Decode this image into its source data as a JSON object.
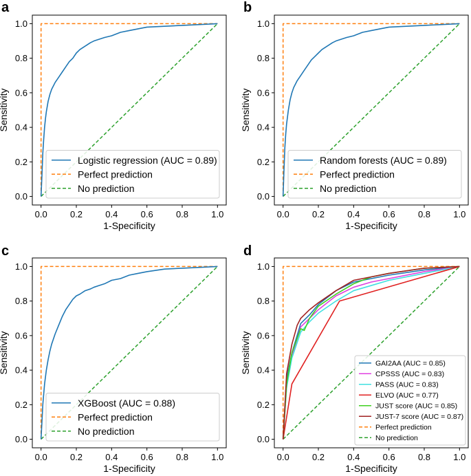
{
  "chart_data": [
    {
      "panel": "a",
      "type": "line",
      "xlabel": "1-Specificity",
      "ylabel": "Sensitivity",
      "xlim": [
        0,
        1
      ],
      "ylim": [
        0,
        1
      ],
      "xticks": [
        "0.0",
        "0.2",
        "0.4",
        "0.6",
        "0.8",
        "1.0"
      ],
      "yticks": [
        "0.0",
        "0.2",
        "0.4",
        "0.6",
        "0.8",
        "1.0"
      ],
      "legend_position": "lower-right",
      "legend_size": "large",
      "series": [
        {
          "name": "Logistic regression (AUC = 0.89)",
          "color": "#1f77b4",
          "dash": "solid",
          "x": [
            0,
            0.005,
            0.01,
            0.015,
            0.02,
            0.025,
            0.03,
            0.04,
            0.05,
            0.06,
            0.07,
            0.08,
            0.1,
            0.12,
            0.14,
            0.16,
            0.18,
            0.2,
            0.22,
            0.25,
            0.28,
            0.3,
            0.33,
            0.36,
            0.4,
            0.45,
            0.5,
            0.55,
            0.6,
            0.7,
            0.8,
            0.9,
            1.0
          ],
          "y": [
            0,
            0.12,
            0.25,
            0.33,
            0.4,
            0.45,
            0.49,
            0.55,
            0.59,
            0.62,
            0.64,
            0.66,
            0.69,
            0.72,
            0.75,
            0.78,
            0.8,
            0.83,
            0.85,
            0.87,
            0.89,
            0.9,
            0.91,
            0.92,
            0.93,
            0.95,
            0.96,
            0.97,
            0.98,
            0.985,
            0.99,
            0.995,
            1.0
          ]
        },
        {
          "name": "Perfect prediction",
          "color": "#ff7f0e",
          "dash": "dashed",
          "x": [
            0,
            0,
            1
          ],
          "y": [
            0,
            1,
            1
          ]
        },
        {
          "name": "No prediction",
          "color": "#2ca02c",
          "dash": "dashed",
          "x": [
            0,
            1
          ],
          "y": [
            0,
            1
          ]
        }
      ]
    },
    {
      "panel": "b",
      "type": "line",
      "xlabel": "1-Specificity",
      "ylabel": "Sensitivity",
      "xlim": [
        0,
        1
      ],
      "ylim": [
        0,
        1
      ],
      "xticks": [
        "0.0",
        "0.2",
        "0.4",
        "0.6",
        "0.8",
        "1.0"
      ],
      "yticks": [
        "0.0",
        "0.2",
        "0.4",
        "0.6",
        "0.8",
        "1.0"
      ],
      "legend_position": "lower-right",
      "legend_size": "large",
      "series": [
        {
          "name": "Random forests (AUC = 0.89)",
          "color": "#1f77b4",
          "dash": "solid",
          "x": [
            0,
            0.005,
            0.01,
            0.015,
            0.02,
            0.03,
            0.04,
            0.05,
            0.06,
            0.08,
            0.1,
            0.12,
            0.14,
            0.16,
            0.18,
            0.2,
            0.22,
            0.25,
            0.28,
            0.3,
            0.33,
            0.36,
            0.4,
            0.45,
            0.5,
            0.55,
            0.6,
            0.7,
            0.8,
            0.9,
            1.0
          ],
          "y": [
            0,
            0.15,
            0.28,
            0.36,
            0.42,
            0.5,
            0.56,
            0.6,
            0.63,
            0.67,
            0.7,
            0.73,
            0.76,
            0.79,
            0.81,
            0.83,
            0.85,
            0.87,
            0.89,
            0.9,
            0.91,
            0.92,
            0.93,
            0.95,
            0.96,
            0.97,
            0.98,
            0.985,
            0.99,
            0.995,
            1.0
          ]
        },
        {
          "name": "Perfect prediction",
          "color": "#ff7f0e",
          "dash": "dashed",
          "x": [
            0,
            0,
            1
          ],
          "y": [
            0,
            1,
            1
          ]
        },
        {
          "name": "No prediction",
          "color": "#2ca02c",
          "dash": "dashed",
          "x": [
            0,
            1
          ],
          "y": [
            0,
            1
          ]
        }
      ]
    },
    {
      "panel": "c",
      "type": "line",
      "xlabel": "1-Specificity",
      "ylabel": "Sensitivity",
      "xlim": [
        0,
        1
      ],
      "ylim": [
        0,
        1
      ],
      "xticks": [
        "0.0",
        "0.2",
        "0.4",
        "0.6",
        "0.8",
        "1.0"
      ],
      "yticks": [
        "0.0",
        "0.2",
        "0.4",
        "0.6",
        "0.8",
        "1.0"
      ],
      "legend_position": "lower-right",
      "legend_size": "large",
      "series": [
        {
          "name": "XGBoost (AUC = 0.88)",
          "color": "#1f77b4",
          "dash": "solid",
          "x": [
            0,
            0.01,
            0.02,
            0.03,
            0.04,
            0.05,
            0.06,
            0.08,
            0.1,
            0.12,
            0.14,
            0.16,
            0.18,
            0.2,
            0.22,
            0.25,
            0.28,
            0.3,
            0.33,
            0.36,
            0.4,
            0.45,
            0.5,
            0.55,
            0.6,
            0.7,
            0.8,
            0.9,
            1.0
          ],
          "y": [
            0,
            0.2,
            0.32,
            0.4,
            0.46,
            0.51,
            0.55,
            0.61,
            0.66,
            0.71,
            0.75,
            0.78,
            0.81,
            0.83,
            0.84,
            0.86,
            0.87,
            0.88,
            0.89,
            0.9,
            0.92,
            0.93,
            0.95,
            0.96,
            0.97,
            0.985,
            0.99,
            0.995,
            1.0
          ]
        },
        {
          "name": "Perfect prediction",
          "color": "#ff7f0e",
          "dash": "dashed",
          "x": [
            0,
            0,
            1
          ],
          "y": [
            0,
            1,
            1
          ]
        },
        {
          "name": "No prediction",
          "color": "#2ca02c",
          "dash": "dashed",
          "x": [
            0,
            1
          ],
          "y": [
            0,
            1
          ]
        }
      ]
    },
    {
      "panel": "d",
      "type": "line",
      "xlabel": "1-Specificity",
      "ylabel": "Sensitivity",
      "xlim": [
        0,
        1
      ],
      "ylim": [
        0,
        1
      ],
      "xticks": [
        "0.0",
        "0.2",
        "0.4",
        "0.6",
        "0.8",
        "1.0"
      ],
      "yticks": [
        "0.0",
        "0.2",
        "0.4",
        "0.6",
        "0.8",
        "1.0"
      ],
      "legend_position": "lower-right",
      "legend_size": "small",
      "series": [
        {
          "name": "GAI2AA (AUC = 0.85)",
          "color": "#1f77b4",
          "dash": "solid",
          "x": [
            0,
            0.02,
            0.05,
            0.1,
            0.15,
            0.2,
            0.3,
            0.4,
            0.5,
            0.6,
            0.8,
            1.0
          ],
          "y": [
            0,
            0.35,
            0.5,
            0.67,
            0.72,
            0.78,
            0.86,
            0.91,
            0.93,
            0.95,
            0.98,
            1.0
          ]
        },
        {
          "name": "CPSSS (AUC = 0.83)",
          "color": "#e040e0",
          "dash": "solid",
          "x": [
            0,
            0.02,
            0.05,
            0.1,
            0.15,
            0.2,
            0.3,
            0.4,
            0.5,
            0.6,
            0.8,
            1.0
          ],
          "y": [
            0,
            0.3,
            0.48,
            0.65,
            0.7,
            0.75,
            0.83,
            0.88,
            0.91,
            0.93,
            0.97,
            1.0
          ]
        },
        {
          "name": "PASS (AUC = 0.83)",
          "color": "#40e0e0",
          "dash": "solid",
          "x": [
            0,
            0.02,
            0.05,
            0.1,
            0.15,
            0.2,
            0.3,
            0.4,
            0.5,
            0.6,
            0.8,
            1.0
          ],
          "y": [
            0,
            0.3,
            0.47,
            0.62,
            0.68,
            0.73,
            0.8,
            0.86,
            0.89,
            0.92,
            0.96,
            1.0
          ]
        },
        {
          "name": "ELVO (AUC = 0.77)",
          "color": "#e02020",
          "dash": "solid",
          "x": [
            0,
            0.05,
            0.32,
            1.0
          ],
          "y": [
            0,
            0.32,
            0.8,
            1.0
          ]
        },
        {
          "name": "JUST score (AUC = 0.85)",
          "color": "#40d020",
          "dash": "solid",
          "x": [
            0,
            0.02,
            0.05,
            0.1,
            0.12,
            0.15,
            0.2,
            0.3,
            0.4,
            0.5,
            0.6,
            0.8,
            1.0
          ],
          "y": [
            0,
            0.32,
            0.5,
            0.64,
            0.63,
            0.7,
            0.77,
            0.84,
            0.9,
            0.94,
            0.96,
            0.99,
            1.0
          ]
        },
        {
          "name": "JUST-7 score (AUC = 0.87)",
          "color": "#a02020",
          "dash": "solid",
          "x": [
            0,
            0.02,
            0.05,
            0.08,
            0.1,
            0.15,
            0.2,
            0.3,
            0.4,
            0.5,
            0.6,
            0.8,
            1.0
          ],
          "y": [
            0,
            0.38,
            0.55,
            0.66,
            0.7,
            0.75,
            0.79,
            0.86,
            0.92,
            0.94,
            0.96,
            0.99,
            1.0
          ]
        },
        {
          "name": "Perfect prediction",
          "color": "#ff7f0e",
          "dash": "dashed",
          "x": [
            0,
            0,
            1
          ],
          "y": [
            0,
            1,
            1
          ]
        },
        {
          "name": "No prediction",
          "color": "#2ca02c",
          "dash": "dashed",
          "x": [
            0,
            1
          ],
          "y": [
            0,
            1
          ]
        }
      ]
    }
  ]
}
